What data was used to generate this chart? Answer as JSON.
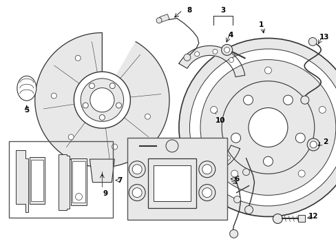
{
  "bg_color": "#ffffff",
  "fig_width": 4.89,
  "fig_height": 3.6,
  "dpi": 100,
  "ec": "#333333",
  "fc_light": "#d8d8d8",
  "fc_mid": "#e8e8e8",
  "fc_white": "#ffffff"
}
